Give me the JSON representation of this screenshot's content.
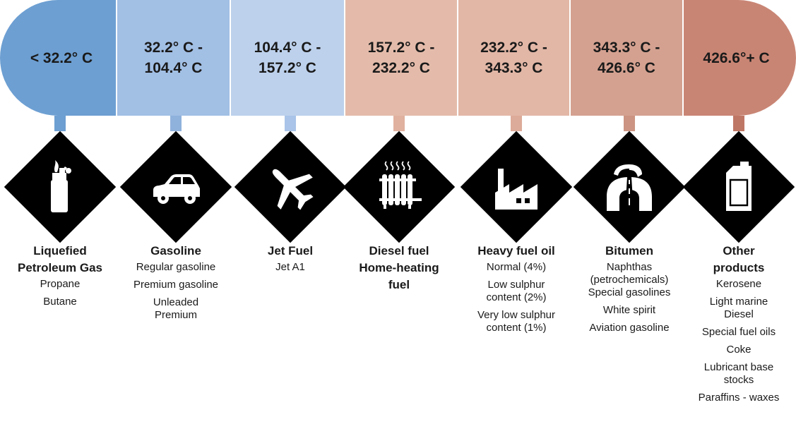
{
  "columns": [
    {
      "range": "< 32.2° C",
      "color": "#6d9fd2",
      "stem_color": "#6d9fd2",
      "icon": "lighter-icon",
      "title_lines": [
        "Liquefied",
        "Petroleum Gas"
      ],
      "items": [
        "Propane",
        "Butane"
      ]
    },
    {
      "range": "32.2° C -\n104.4° C",
      "color": "#a2bfe4",
      "stem_color": "#8fb2dc",
      "icon": "car-icon",
      "title_lines": [
        "Gasoline"
      ],
      "items": [
        "Regular gasoline",
        "Premium gasoline",
        "Unleaded\nPremium"
      ]
    },
    {
      "range": "104.4° C -\n157.2° C",
      "color": "#bdd1ec",
      "stem_color": "#a9c4e8",
      "icon": "airplane-icon",
      "title_lines": [
        "Jet Fuel"
      ],
      "items": [
        "Jet A1"
      ]
    },
    {
      "range": "157.2° C -\n232.2° C",
      "color": "#e4bbaa",
      "stem_color": "#e0b19f",
      "icon": "radiator-icon",
      "title_lines": [
        "Diesel fuel",
        "Home-heating",
        "fuel"
      ],
      "items": []
    },
    {
      "range": "232.2° C -\n343.3° C",
      "color": "#e2b7a6",
      "stem_color": "#ddab99",
      "icon": "factory-icon",
      "title_lines": [
        "Heavy fuel oil"
      ],
      "items": [
        "Normal (4%)",
        "Low sulphur\ncontent (2%)",
        "Very low sulphur\ncontent (1%)"
      ]
    },
    {
      "range": "343.3° C -\n426.6° C",
      "color": "#d4a190",
      "stem_color": "#cc9482",
      "icon": "road-icon",
      "title_lines": [
        "Bitumen"
      ],
      "items": [
        "Naphthas\n(petrochemicals)\nSpecial gasolines",
        "White spirit",
        "Aviation gasoline"
      ]
    },
    {
      "range": "426.6°+ C",
      "color": "#c98574",
      "stem_color": "#bf7765",
      "icon": "oil-can-icon",
      "title_lines": [
        "Other",
        "products"
      ],
      "items": [
        "Kerosene",
        "Light marine\nDiesel",
        "Special fuel oils",
        "Coke",
        "Lubricant base\nstocks",
        "Paraffins - waxes"
      ]
    }
  ]
}
